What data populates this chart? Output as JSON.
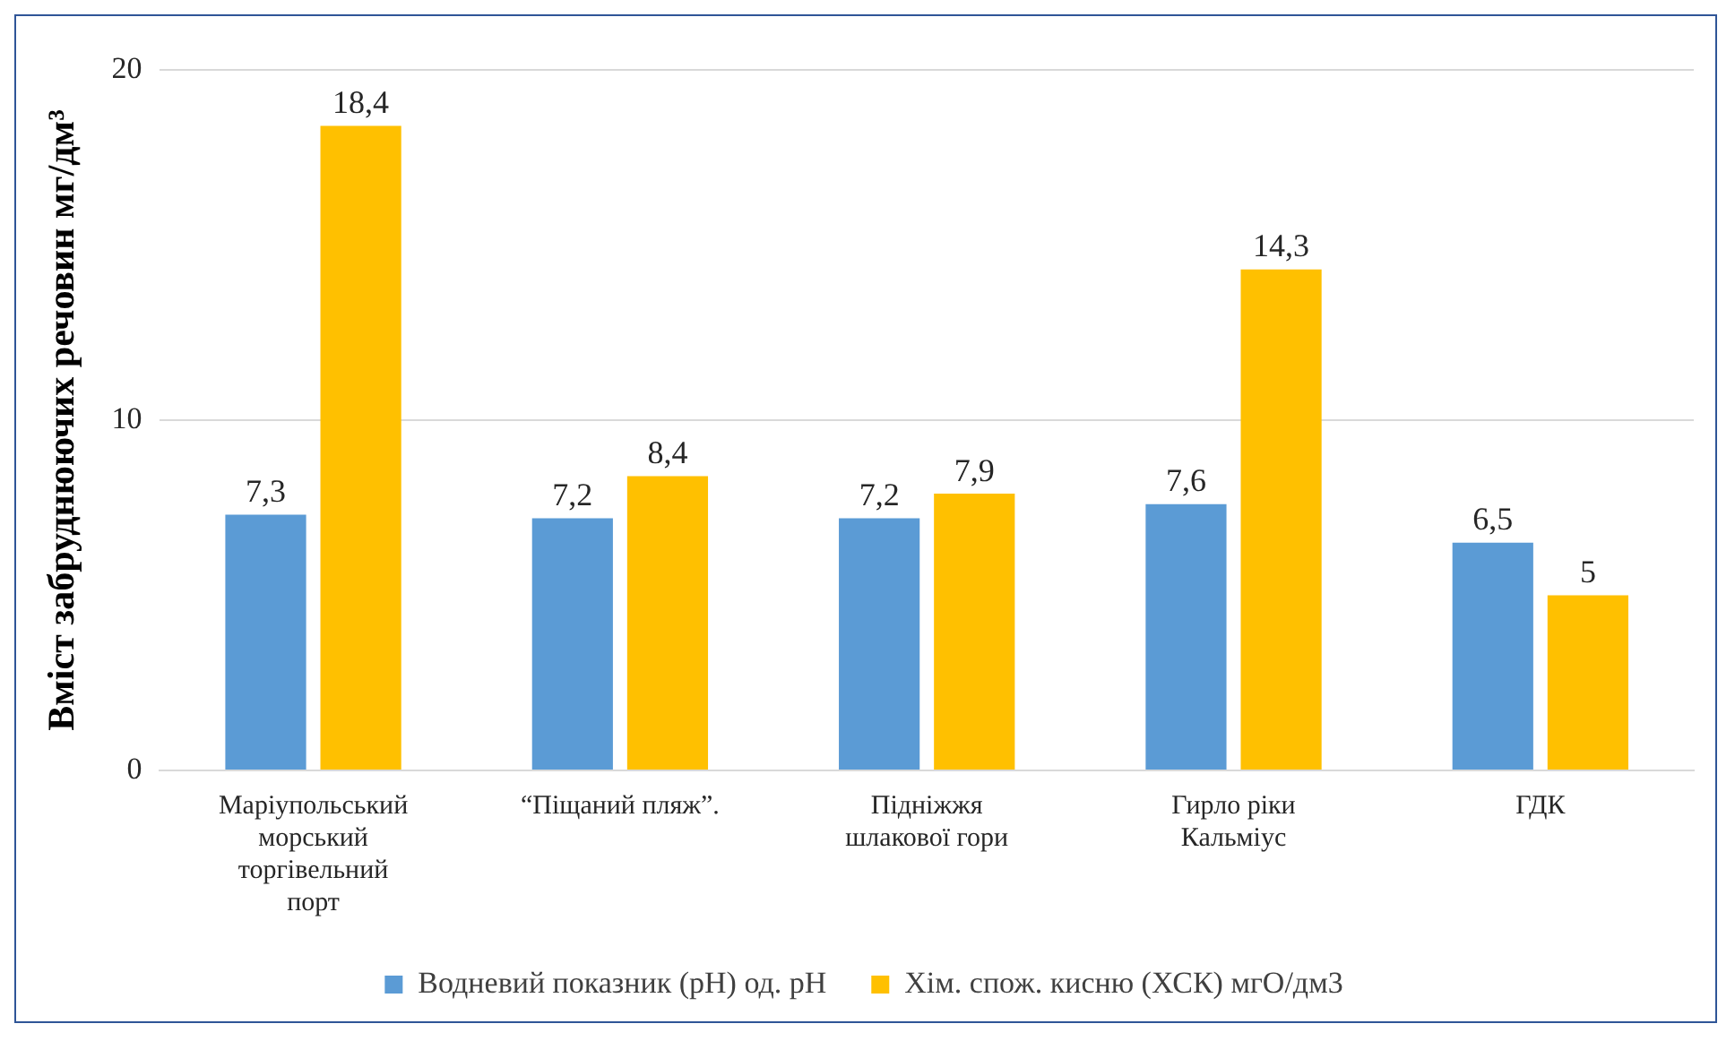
{
  "chart_data": {
    "type": "bar",
    "ylabel": "Вміст забруднюючих речовин мг/дм³",
    "categories": [
      "Маріупольський морський торгівельний порт",
      "“Піщаний пляж”.",
      "Підніжжя шлакової гори",
      "Гирло ріки Кальміус",
      "ГДК"
    ],
    "series": [
      {
        "name": "Водневий показник (pH) од. pH",
        "color": "#5b9bd5",
        "values": [
          7.3,
          7.2,
          7.2,
          7.6,
          6.5
        ],
        "value_labels": [
          "7,3",
          "7,2",
          "7,2",
          "7,6",
          "6,5"
        ]
      },
      {
        "name": "Хім. спож. кисню (ХСК) мгО/дм3",
        "color": "#ffc000",
        "values": [
          18.4,
          8.4,
          7.9,
          14.3,
          5
        ],
        "value_labels": [
          "18,4",
          "8,4",
          "7,9",
          "14,3",
          "5"
        ]
      }
    ],
    "ylim": [
      0,
      20
    ],
    "yticks": [
      0,
      10,
      20
    ],
    "grid": "y",
    "legend": "bottom"
  }
}
